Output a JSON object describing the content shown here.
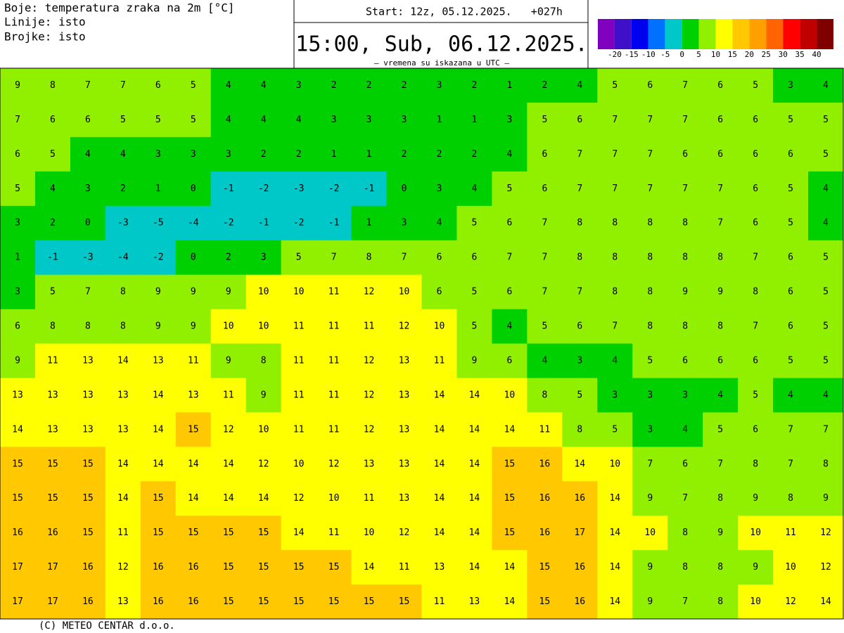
{
  "header": {
    "lines": [
      "Boje: temperatura zraka na 2m [°C]",
      "Linije: isto",
      "Brojke: isto"
    ],
    "start": "Start: 12z, 05.12.2025.   +027h",
    "valid_time": "15:00, Sub, 06.12.2025.",
    "note": "– vremena su iskazana u UTC –"
  },
  "legend": {
    "labels": [
      -20,
      -15,
      -10,
      -5,
      0,
      5,
      10,
      15,
      20,
      25,
      30,
      35,
      40
    ],
    "colors": [
      "#8000c0",
      "#4010c8",
      "#0000f0",
      "#0070ff",
      "#00c8c8",
      "#00d000",
      "#90f000",
      "#ffff00",
      "#ffc800",
      "#ffa000",
      "#ff6400",
      "#ff0000",
      "#c00000",
      "#800000"
    ]
  },
  "map": {
    "grid": [
      [
        9,
        8,
        7,
        7,
        6,
        5,
        4,
        4,
        3,
        2,
        2,
        2,
        3,
        2,
        1,
        2,
        4,
        5,
        6,
        7,
        6,
        5,
        3,
        4
      ],
      [
        7,
        6,
        6,
        5,
        5,
        5,
        4,
        4,
        4,
        3,
        3,
        3,
        1,
        1,
        3,
        5,
        6,
        7,
        7,
        7,
        6,
        6,
        5,
        5
      ],
      [
        6,
        5,
        4,
        4,
        3,
        3,
        3,
        2,
        2,
        1,
        1,
        2,
        2,
        2,
        4,
        6,
        7,
        7,
        7,
        6,
        6,
        6,
        6,
        5
      ],
      [
        5,
        4,
        3,
        2,
        1,
        0,
        -1,
        -2,
        -3,
        -2,
        -1,
        0,
        3,
        4,
        5,
        6,
        7,
        7,
        7,
        7,
        7,
        6,
        5,
        4
      ],
      [
        3,
        2,
        0,
        -3,
        -5,
        -4,
        -2,
        -1,
        -2,
        -1,
        1,
        3,
        4,
        5,
        6,
        7,
        8,
        8,
        8,
        8,
        7,
        6,
        5,
        4
      ],
      [
        1,
        -1,
        -3,
        -4,
        -2,
        0,
        2,
        3,
        5,
        7,
        8,
        7,
        6,
        6,
        7,
        7,
        8,
        8,
        8,
        8,
        8,
        7,
        6,
        5
      ],
      [
        3,
        5,
        7,
        8,
        9,
        9,
        9,
        10,
        10,
        11,
        12,
        10,
        6,
        5,
        6,
        7,
        7,
        8,
        8,
        9,
        9,
        8,
        6,
        5
      ],
      [
        6,
        8,
        8,
        8,
        9,
        9,
        10,
        10,
        11,
        11,
        11,
        12,
        10,
        5,
        4,
        5,
        6,
        7,
        8,
        8,
        8,
        7,
        6,
        5
      ],
      [
        9,
        11,
        13,
        14,
        13,
        11,
        9,
        8,
        11,
        11,
        12,
        13,
        11,
        9,
        6,
        4,
        3,
        4,
        5,
        6,
        6,
        6,
        5,
        5
      ],
      [
        13,
        13,
        13,
        13,
        14,
        13,
        11,
        9,
        11,
        11,
        12,
        13,
        14,
        14,
        10,
        8,
        5,
        3,
        3,
        3,
        4,
        5,
        4,
        4
      ],
      [
        14,
        13,
        13,
        13,
        14,
        15,
        12,
        10,
        11,
        11,
        12,
        13,
        14,
        14,
        14,
        11,
        8,
        5,
        3,
        4,
        5,
        6,
        7,
        7
      ],
      [
        15,
        15,
        15,
        14,
        14,
        14,
        14,
        12,
        10,
        12,
        13,
        13,
        14,
        14,
        15,
        16,
        14,
        10,
        7,
        6,
        7,
        8,
        7,
        8
      ],
      [
        15,
        15,
        15,
        14,
        15,
        14,
        14,
        14,
        12,
        10,
        11,
        13,
        14,
        14,
        15,
        16,
        16,
        14,
        9,
        7,
        8,
        9,
        8,
        9
      ],
      [
        16,
        16,
        15,
        11,
        15,
        15,
        15,
        15,
        14,
        11,
        10,
        12,
        14,
        14,
        15,
        16,
        17,
        14,
        10,
        8,
        9,
        10,
        11,
        12
      ],
      [
        17,
        17,
        16,
        12,
        16,
        16,
        15,
        15,
        15,
        15,
        14,
        11,
        13,
        14,
        14,
        15,
        16,
        14,
        9,
        8,
        8,
        9,
        10,
        12
      ],
      [
        17,
        17,
        16,
        13,
        16,
        16,
        15,
        15,
        15,
        15,
        15,
        15,
        11,
        13,
        14,
        15,
        16,
        14,
        9,
        7,
        8,
        10,
        12,
        14
      ]
    ]
  },
  "footer": "(C) METEO CENTAR d.o.o."
}
